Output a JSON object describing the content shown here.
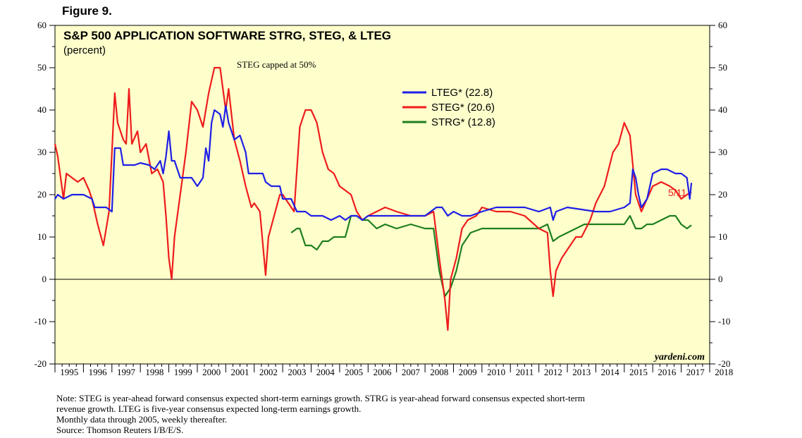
{
  "figure_label": "Figure 9.",
  "chart_data": {
    "type": "line",
    "title": "S&P 500 APPLICATION SOFTWARE STRG, STEG, & LTEG",
    "subtitle": "(percent)",
    "annotation": "STEG capped at 50%",
    "end_label": "5/11",
    "watermark": "yardeni.com",
    "ylim": [
      -20,
      60
    ],
    "xlim": [
      1995.0,
      2018.0
    ],
    "y_ticks": [
      "-20",
      "-10",
      "0",
      "10",
      "20",
      "30",
      "40",
      "50",
      "60"
    ],
    "x_tick_labels": [
      "1995",
      "1996",
      "1997",
      "1998",
      "1999",
      "2000",
      "2001",
      "2002",
      "2003",
      "2004",
      "2005",
      "2006",
      "2007",
      "2008",
      "2009",
      "2010",
      "2011",
      "2012",
      "2013",
      "2014",
      "2015",
      "2016",
      "2017",
      "2018"
    ],
    "grid": false,
    "legend_position": "top-center",
    "series": [
      {
        "name": "LTEG* (22.8)",
        "color": "#1f1fe6",
        "points": [
          [
            1995.0,
            19
          ],
          [
            1995.1,
            20
          ],
          [
            1995.3,
            19
          ],
          [
            1995.6,
            20
          ],
          [
            1996.0,
            20
          ],
          [
            1996.3,
            19
          ],
          [
            1996.4,
            17
          ],
          [
            1996.8,
            17
          ],
          [
            1997.0,
            16
          ],
          [
            1997.1,
            31
          ],
          [
            1997.3,
            31
          ],
          [
            1997.4,
            27
          ],
          [
            1997.8,
            27
          ],
          [
            1998.0,
            27.5
          ],
          [
            1998.3,
            27
          ],
          [
            1998.5,
            26
          ],
          [
            1998.7,
            28
          ],
          [
            1998.8,
            25
          ],
          [
            1998.9,
            29
          ],
          [
            1999.0,
            35
          ],
          [
            1999.1,
            28
          ],
          [
            1999.2,
            28
          ],
          [
            1999.4,
            24
          ],
          [
            1999.6,
            24
          ],
          [
            1999.8,
            24
          ],
          [
            2000.0,
            22
          ],
          [
            2000.2,
            24
          ],
          [
            2000.3,
            31
          ],
          [
            2000.4,
            28
          ],
          [
            2000.5,
            37
          ],
          [
            2000.6,
            40
          ],
          [
            2000.8,
            39
          ],
          [
            2000.9,
            36
          ],
          [
            2001.0,
            41
          ],
          [
            2001.1,
            37
          ],
          [
            2001.3,
            33
          ],
          [
            2001.5,
            34
          ],
          [
            2001.7,
            30
          ],
          [
            2001.8,
            25
          ],
          [
            2002.0,
            25
          ],
          [
            2002.3,
            25
          ],
          [
            2002.4,
            23
          ],
          [
            2002.6,
            22
          ],
          [
            2002.9,
            22
          ],
          [
            2003.0,
            19
          ],
          [
            2003.3,
            19
          ],
          [
            2003.5,
            16
          ],
          [
            2003.8,
            16
          ],
          [
            2004.0,
            15
          ],
          [
            2004.4,
            15
          ],
          [
            2004.7,
            14
          ],
          [
            2005.0,
            15
          ],
          [
            2005.2,
            14
          ],
          [
            2005.4,
            15
          ],
          [
            2005.6,
            15
          ],
          [
            2005.8,
            14
          ],
          [
            2006.0,
            15
          ],
          [
            2006.3,
            15
          ],
          [
            2006.6,
            15
          ],
          [
            2007.0,
            15
          ],
          [
            2007.5,
            15
          ],
          [
            2008.0,
            15
          ],
          [
            2008.4,
            17
          ],
          [
            2008.6,
            17
          ],
          [
            2008.8,
            15
          ],
          [
            2009.0,
            16
          ],
          [
            2009.3,
            15
          ],
          [
            2009.6,
            15
          ],
          [
            2010.0,
            16
          ],
          [
            2010.5,
            17
          ],
          [
            2011.0,
            17
          ],
          [
            2011.5,
            17
          ],
          [
            2012.0,
            16
          ],
          [
            2012.4,
            17
          ],
          [
            2012.5,
            14
          ],
          [
            2012.6,
            16
          ],
          [
            2013.0,
            17
          ],
          [
            2013.5,
            16.5
          ],
          [
            2014.0,
            16
          ],
          [
            2014.5,
            16
          ],
          [
            2015.0,
            17
          ],
          [
            2015.2,
            18
          ],
          [
            2015.3,
            26
          ],
          [
            2015.4,
            24
          ],
          [
            2015.5,
            20
          ],
          [
            2015.6,
            17
          ],
          [
            2015.8,
            19
          ],
          [
            2016.0,
            25
          ],
          [
            2016.3,
            26
          ],
          [
            2016.5,
            26
          ],
          [
            2016.8,
            25
          ],
          [
            2017.0,
            25
          ],
          [
            2017.2,
            24
          ],
          [
            2017.3,
            19
          ],
          [
            2017.36,
            22.8
          ]
        ]
      },
      {
        "name": "STEG* (20.6)",
        "color": "#ee1c1c",
        "points": [
          [
            1995.0,
            32
          ],
          [
            1995.1,
            29
          ],
          [
            1995.3,
            19
          ],
          [
            1995.4,
            25
          ],
          [
            1995.6,
            24
          ],
          [
            1995.8,
            23
          ],
          [
            1996.0,
            24
          ],
          [
            1996.2,
            21
          ],
          [
            1996.3,
            19
          ],
          [
            1996.5,
            13
          ],
          [
            1996.7,
            8
          ],
          [
            1996.9,
            16
          ],
          [
            1997.0,
            30
          ],
          [
            1997.1,
            44
          ],
          [
            1997.2,
            37
          ],
          [
            1997.4,
            33
          ],
          [
            1997.5,
            32
          ],
          [
            1997.6,
            45
          ],
          [
            1997.7,
            32
          ],
          [
            1997.9,
            35
          ],
          [
            1998.0,
            30
          ],
          [
            1998.2,
            32
          ],
          [
            1998.4,
            25
          ],
          [
            1998.6,
            26
          ],
          [
            1998.8,
            23
          ],
          [
            1998.9,
            15
          ],
          [
            1999.0,
            5
          ],
          [
            1999.1,
            0
          ],
          [
            1999.2,
            10
          ],
          [
            1999.4,
            20
          ],
          [
            1999.6,
            30
          ],
          [
            1999.8,
            42
          ],
          [
            2000.0,
            40
          ],
          [
            2000.2,
            36
          ],
          [
            2000.4,
            44
          ],
          [
            2000.6,
            50
          ],
          [
            2000.8,
            50
          ],
          [
            2001.0,
            40
          ],
          [
            2001.1,
            45
          ],
          [
            2001.3,
            33
          ],
          [
            2001.5,
            28
          ],
          [
            2001.7,
            22
          ],
          [
            2001.9,
            17
          ],
          [
            2002.0,
            18
          ],
          [
            2002.2,
            16
          ],
          [
            2002.4,
            1
          ],
          [
            2002.5,
            10
          ],
          [
            2002.7,
            15
          ],
          [
            2002.9,
            20
          ],
          [
            2003.0,
            20
          ],
          [
            2003.2,
            18
          ],
          [
            2003.4,
            16
          ],
          [
            2003.6,
            36
          ],
          [
            2003.8,
            40
          ],
          [
            2004.0,
            40
          ],
          [
            2004.2,
            37
          ],
          [
            2004.4,
            30
          ],
          [
            2004.6,
            26
          ],
          [
            2004.8,
            25
          ],
          [
            2005.0,
            22
          ],
          [
            2005.2,
            21
          ],
          [
            2005.4,
            20
          ],
          [
            2005.6,
            16
          ],
          [
            2005.8,
            14
          ],
          [
            2006.0,
            15
          ],
          [
            2006.3,
            16
          ],
          [
            2006.6,
            17
          ],
          [
            2007.0,
            16
          ],
          [
            2007.5,
            15
          ],
          [
            2008.0,
            15
          ],
          [
            2008.3,
            16
          ],
          [
            2008.5,
            5
          ],
          [
            2008.7,
            -5
          ],
          [
            2008.8,
            -12
          ],
          [
            2008.9,
            0
          ],
          [
            2009.1,
            5
          ],
          [
            2009.3,
            12
          ],
          [
            2009.5,
            14
          ],
          [
            2009.8,
            15
          ],
          [
            2010.0,
            17
          ],
          [
            2010.5,
            16
          ],
          [
            2011.0,
            16
          ],
          [
            2011.5,
            15
          ],
          [
            2012.0,
            12
          ],
          [
            2012.3,
            11
          ],
          [
            2012.4,
            2
          ],
          [
            2012.5,
            -4
          ],
          [
            2012.6,
            2
          ],
          [
            2012.8,
            5
          ],
          [
            2013.0,
            7
          ],
          [
            2013.3,
            10
          ],
          [
            2013.5,
            10
          ],
          [
            2013.8,
            14
          ],
          [
            2014.0,
            18
          ],
          [
            2014.3,
            22
          ],
          [
            2014.6,
            30
          ],
          [
            2014.8,
            32
          ],
          [
            2015.0,
            37
          ],
          [
            2015.2,
            34
          ],
          [
            2015.4,
            20
          ],
          [
            2015.6,
            16
          ],
          [
            2015.8,
            19
          ],
          [
            2016.0,
            22
          ],
          [
            2016.3,
            23
          ],
          [
            2016.6,
            22
          ],
          [
            2016.8,
            21
          ],
          [
            2017.0,
            19
          ],
          [
            2017.2,
            20
          ],
          [
            2017.36,
            20.6
          ]
        ]
      },
      {
        "name": "STRG* (12.8)",
        "color": "#1e7f1e",
        "points": [
          [
            2003.3,
            11
          ],
          [
            2003.5,
            12
          ],
          [
            2003.6,
            12
          ],
          [
            2003.7,
            10
          ],
          [
            2003.8,
            8
          ],
          [
            2004.0,
            8
          ],
          [
            2004.2,
            7
          ],
          [
            2004.4,
            9
          ],
          [
            2004.6,
            9
          ],
          [
            2004.8,
            10
          ],
          [
            2005.0,
            10
          ],
          [
            2005.2,
            10
          ],
          [
            2005.4,
            15
          ],
          [
            2005.6,
            15
          ],
          [
            2005.8,
            14
          ],
          [
            2006.0,
            14
          ],
          [
            2006.3,
            12
          ],
          [
            2006.6,
            13
          ],
          [
            2007.0,
            12
          ],
          [
            2007.5,
            13
          ],
          [
            2008.0,
            12
          ],
          [
            2008.3,
            12
          ],
          [
            2008.5,
            2
          ],
          [
            2008.7,
            -4
          ],
          [
            2008.9,
            -2
          ],
          [
            2009.1,
            2
          ],
          [
            2009.3,
            8
          ],
          [
            2009.6,
            11
          ],
          [
            2010.0,
            12
          ],
          [
            2010.5,
            12
          ],
          [
            2011.0,
            12
          ],
          [
            2011.5,
            12
          ],
          [
            2012.0,
            12
          ],
          [
            2012.3,
            13
          ],
          [
            2012.5,
            9
          ],
          [
            2012.7,
            10
          ],
          [
            2013.0,
            11
          ],
          [
            2013.3,
            12
          ],
          [
            2013.6,
            13
          ],
          [
            2014.0,
            13
          ],
          [
            2014.5,
            13
          ],
          [
            2015.0,
            13
          ],
          [
            2015.2,
            15
          ],
          [
            2015.4,
            12
          ],
          [
            2015.6,
            12
          ],
          [
            2015.8,
            13
          ],
          [
            2016.0,
            13
          ],
          [
            2016.3,
            14
          ],
          [
            2016.6,
            15
          ],
          [
            2016.8,
            15
          ],
          [
            2017.0,
            13
          ],
          [
            2017.2,
            12
          ],
          [
            2017.36,
            12.8
          ]
        ]
      }
    ]
  },
  "notes": [
    "Note: STEG is year-ahead forward consensus expected short-term earnings growth. STRG is year-ahead forward consensus expected short-term",
    "revenue growth. LTEG is five-year consensus expected long-term earnings growth.",
    "Monthly data through 2005, weekly thereafter.",
    "Source: Thomson Reuters I/B/E/S."
  ]
}
